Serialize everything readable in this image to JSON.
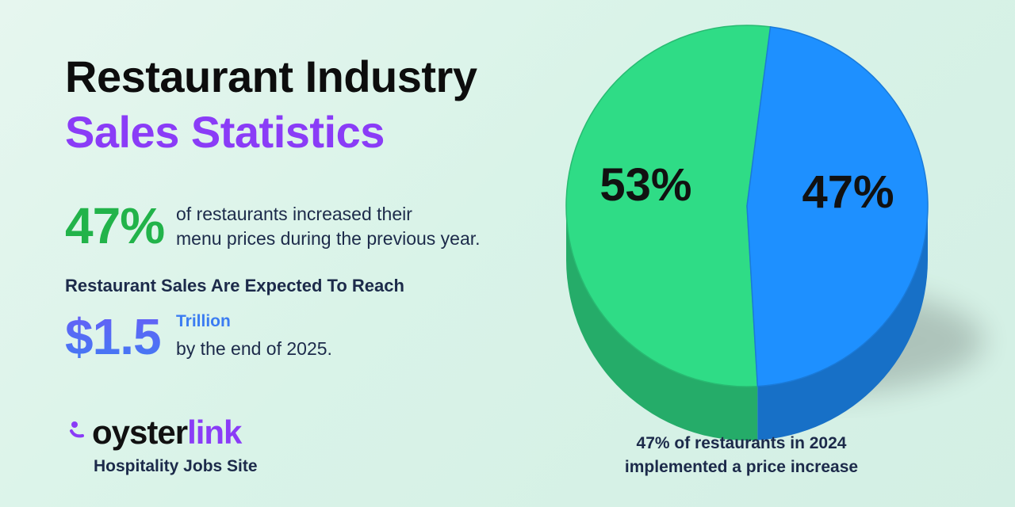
{
  "title": {
    "line1": "Restaurant Industry",
    "line2": "Sales Statistics"
  },
  "stat_prices": {
    "value": "47%",
    "line1": "of restaurants increased their",
    "line2": "menu prices during the previous year."
  },
  "stat_sales": {
    "heading": "Restaurant Sales Are Expected To Reach",
    "value": "$1.5",
    "unit": "Trillion",
    "line2": "by the end of 2025."
  },
  "brand": {
    "name_part1": "oyster",
    "name_part2": "link",
    "tagline": "Hospitality Jobs Site",
    "accent": "#8a3cf7",
    "logo_icon": "oyster-logo-icon"
  },
  "chart_data": {
    "type": "pie",
    "title": "",
    "slices": [
      {
        "label": "53%",
        "value": 53,
        "color": "#2fdc86"
      },
      {
        "label": "47%",
        "value": 47,
        "color": "#1e90ff"
      }
    ],
    "legend": "none",
    "caption_line1": "47% of restaurants in 2024",
    "caption_line2": "implemented a price increase"
  },
  "colors": {
    "headline": "#0d0d0d",
    "purple": "#8a3cf7",
    "green_stat": "#22b34a",
    "blue_stat": "#3b7cf2",
    "text_dark": "#1c2a4a"
  }
}
